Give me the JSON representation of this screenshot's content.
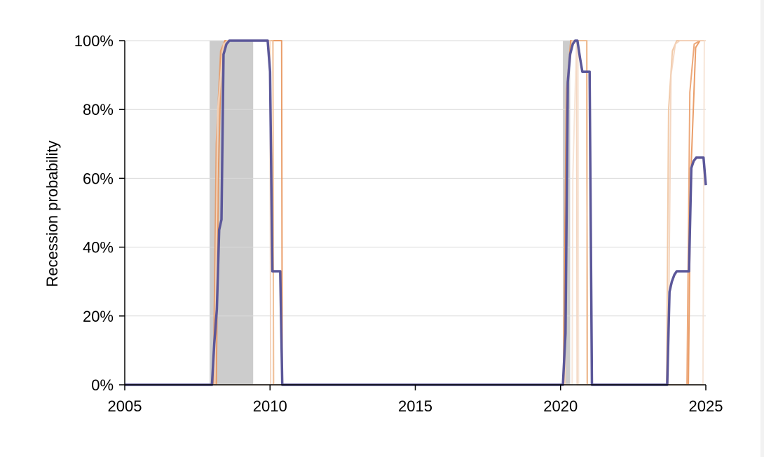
{
  "chart_data": {
    "type": "line",
    "title": "",
    "xlabel": "",
    "ylabel": "Recession probability",
    "xlim": [
      2005,
      2025
    ],
    "ylim": [
      0,
      100
    ],
    "x_ticks": [
      "2005",
      "2010",
      "2015",
      "2020",
      "2025"
    ],
    "y_ticks": [
      "0%",
      "20%",
      "40%",
      "60%",
      "80%",
      "100%"
    ],
    "grid": "horizontal",
    "legend": "none",
    "colors": {
      "main": "#5b5799",
      "shade": "#cccccc",
      "grid": "#d9d9d9",
      "axis": "#000000"
    },
    "recessions": [
      {
        "start": 2007.92,
        "end": 2009.42
      },
      {
        "start": 2020.08,
        "end": 2020.33
      }
    ],
    "background_series": [
      {
        "color": "#e8935a",
        "opacity": 0.9,
        "points": [
          [
            2005,
            0
          ],
          [
            2008.15,
            0
          ],
          [
            2008.22,
            60
          ],
          [
            2008.32,
            95
          ],
          [
            2008.45,
            100
          ],
          [
            2010.4,
            100
          ],
          [
            2010.42,
            0
          ],
          [
            2020.1,
            0
          ],
          [
            2020.2,
            80
          ],
          [
            2020.35,
            100
          ],
          [
            2020.9,
            100
          ],
          [
            2020.92,
            0
          ],
          [
            2024.4,
            0
          ],
          [
            2024.48,
            60
          ],
          [
            2024.65,
            98
          ],
          [
            2024.8,
            100
          ],
          [
            2025,
            100
          ]
        ]
      },
      {
        "color": "#e8935a",
        "opacity": 0.8,
        "points": [
          [
            2005,
            0
          ],
          [
            2008.05,
            0
          ],
          [
            2008.15,
            70
          ],
          [
            2008.3,
            97
          ],
          [
            2008.45,
            100
          ],
          [
            2010.1,
            100
          ],
          [
            2010.12,
            0
          ],
          [
            2020.1,
            0
          ],
          [
            2020.2,
            85
          ],
          [
            2020.35,
            100
          ],
          [
            2020.9,
            100
          ],
          [
            2020.92,
            0
          ],
          [
            2024.35,
            0
          ],
          [
            2024.45,
            85
          ],
          [
            2024.6,
            99
          ],
          [
            2024.8,
            100
          ],
          [
            2025,
            100
          ]
        ]
      },
      {
        "color": "#f0c4a0",
        "opacity": 0.9,
        "points": [
          [
            2005,
            0
          ],
          [
            2008.1,
            0
          ],
          [
            2008.2,
            75
          ],
          [
            2008.35,
            97
          ],
          [
            2008.5,
            100
          ],
          [
            2010.1,
            100
          ],
          [
            2010.12,
            0
          ],
          [
            2020.15,
            0
          ],
          [
            2020.22,
            85
          ],
          [
            2020.4,
            100
          ],
          [
            2020.9,
            100
          ],
          [
            2020.92,
            0
          ],
          [
            2023.65,
            0
          ],
          [
            2023.72,
            80
          ],
          [
            2023.85,
            97
          ],
          [
            2024.0,
            100
          ],
          [
            2025,
            100
          ]
        ]
      },
      {
        "color": "#f3d3bb",
        "opacity": 0.9,
        "points": [
          [
            2005,
            0
          ],
          [
            2008.1,
            0
          ],
          [
            2008.2,
            80
          ],
          [
            2008.4,
            99
          ],
          [
            2008.55,
            100
          ],
          [
            2010.0,
            100
          ],
          [
            2010.02,
            0
          ],
          [
            2020.15,
            0
          ],
          [
            2020.25,
            90
          ],
          [
            2020.4,
            100
          ],
          [
            2020.55,
            100
          ],
          [
            2020.57,
            0
          ],
          [
            2023.7,
            0
          ],
          [
            2023.8,
            90
          ],
          [
            2023.95,
            99
          ],
          [
            2024.1,
            100
          ],
          [
            2025,
            100
          ]
        ]
      },
      {
        "color": "#f5e0d0",
        "opacity": 0.8,
        "points": [
          [
            2005,
            0
          ],
          [
            2020.4,
            0
          ],
          [
            2020.42,
            60
          ],
          [
            2020.55,
            100
          ],
          [
            2020.6,
            100
          ],
          [
            2020.62,
            0
          ],
          [
            2024.9,
            0
          ],
          [
            2024.95,
            100
          ],
          [
            2025,
            100
          ]
        ]
      }
    ],
    "series": [
      {
        "color": "#5b5799",
        "x": [
          2005,
          2008.0,
          2008.08,
          2008.17,
          2008.25,
          2008.33,
          2008.4,
          2008.5,
          2008.6,
          2008.75,
          2008.92,
          2009.5,
          2009.92,
          2010.0,
          2010.08,
          2010.17,
          2010.35,
          2010.42,
          2015,
          2020.08,
          2020.17,
          2020.25,
          2020.33,
          2020.42,
          2020.5,
          2020.58,
          2020.67,
          2020.75,
          2020.83,
          2020.92,
          2021.0,
          2021.08,
          2023.67,
          2023.75,
          2023.83,
          2023.92,
          2024.0,
          2024.17,
          2024.33,
          2024.42,
          2024.5,
          2024.58,
          2024.67,
          2024.83,
          2024.92,
          2025.0
        ],
        "y": [
          0,
          0,
          12,
          22,
          45,
          48,
          96,
          99,
          100,
          100,
          100,
          100,
          100,
          91,
          33,
          33,
          33,
          0,
          0,
          0,
          15,
          88,
          96,
          99,
          100,
          100,
          95,
          91,
          91,
          91,
          91,
          0,
          0,
          27,
          30,
          32,
          33,
          33,
          33,
          33,
          63,
          65,
          66,
          66,
          66,
          58
        ]
      }
    ]
  }
}
